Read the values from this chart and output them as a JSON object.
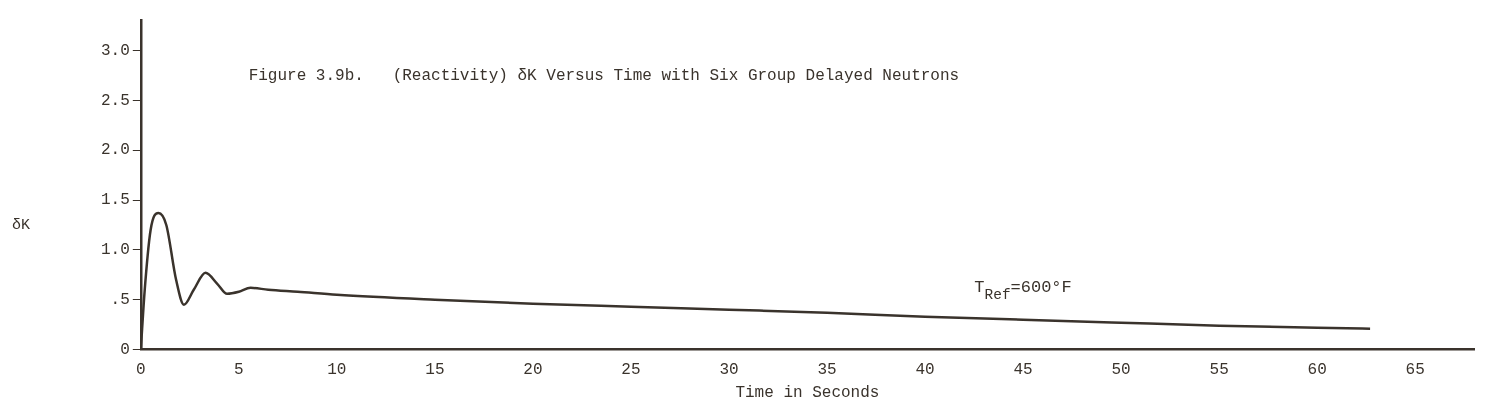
{
  "chart_data": {
    "type": "line",
    "title": "Figure 3.9b.   (Reactivity) δK Versus Time with Six Group Delayed Neutrons",
    "xlabel": "Time in Seconds",
    "ylabel": "δK",
    "x": [
      0,
      0.2,
      0.5,
      0.9,
      1.3,
      1.8,
      2.2,
      2.7,
      3.3,
      3.9,
      4.4,
      5.0,
      5.6,
      6.5,
      8,
      10,
      15,
      20,
      25,
      30,
      35,
      40,
      45,
      50,
      55,
      60,
      62.7
    ],
    "series": [
      {
        "color": "#3a332c",
        "values": [
          0,
          0.6,
          1.2,
          1.37,
          1.25,
          0.7,
          0.45,
          0.6,
          0.77,
          0.66,
          0.56,
          0.58,
          0.62,
          0.6,
          0.58,
          0.55,
          0.5,
          0.46,
          0.43,
          0.4,
          0.37,
          0.33,
          0.3,
          0.27,
          0.24,
          0.22,
          0.21
        ]
      }
    ],
    "xlim": [
      0,
      68
    ],
    "xticks": [
      0,
      5,
      10,
      15,
      20,
      25,
      30,
      35,
      40,
      45,
      50,
      55,
      60,
      65
    ],
    "ylim": [
      0,
      3.3
    ],
    "yticks": [
      0,
      {
        "value": 0.5,
        "label": ".5"
      },
      {
        "value": 1,
        "label": "1.0"
      },
      {
        "value": 1.5,
        "label": "1.5"
      },
      {
        "value": 2,
        "label": "2.0"
      },
      {
        "value": 2.5,
        "label": "2.5"
      },
      {
        "value": 3,
        "label": "3.0"
      }
    ],
    "annotations": [
      {
        "text": "T$_{Ref}$=600°F",
        "x": 45,
        "y": 0.36
      }
    ],
    "grid": false,
    "legend": false,
    "marker": "none",
    "line_style": "solid"
  }
}
